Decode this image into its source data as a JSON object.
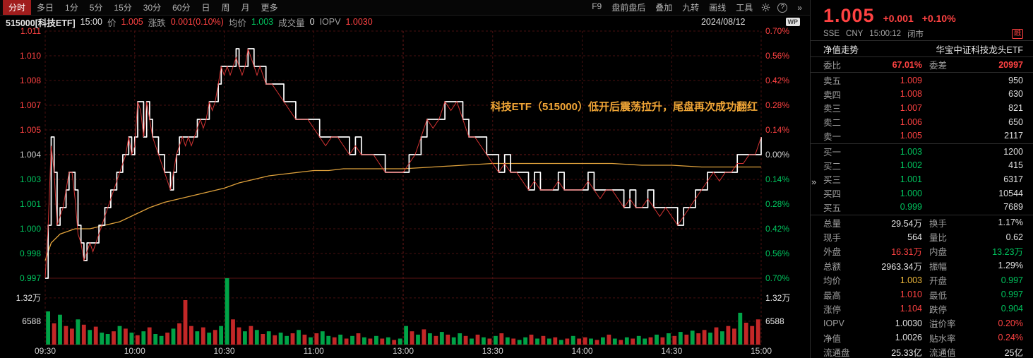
{
  "toolbar": {
    "tabs": [
      {
        "label": "分时",
        "active": true
      },
      {
        "label": "多日",
        "active": false
      },
      {
        "label": "1分",
        "active": false
      },
      {
        "label": "5分",
        "active": false
      },
      {
        "label": "15分",
        "active": false
      },
      {
        "label": "30分",
        "active": false
      },
      {
        "label": "60分",
        "active": false
      },
      {
        "label": "日",
        "active": false
      },
      {
        "label": "周",
        "active": false
      },
      {
        "label": "月",
        "active": false
      },
      {
        "label": "更多",
        "active": false
      }
    ],
    "right_items": [
      "F9",
      "盘前盘后",
      "叠加",
      "九转",
      "画线",
      "工具"
    ],
    "help_icon": "?",
    "more_icon": "»"
  },
  "chart_header": {
    "symbol": "515000[科技ETF]",
    "time": "15:00",
    "price_label": "价",
    "price": "1.005",
    "change_label": "涨跌",
    "change": "0.001(0.10%)",
    "avg_label": "均价",
    "avg": "1.003",
    "vol_label": "成交量",
    "vol": "0",
    "iopv_label": "IOPV",
    "iopv": "1.0030",
    "date": "2024/08/12",
    "logo": "WP"
  },
  "annotation": "科技ETF（515000）低开后震荡拉升，尾盘再次成功翻红",
  "panel_icons": {
    "collapse": "»"
  },
  "chart_data": {
    "type": "line",
    "title": "科技ETF(515000) 分时走势 2024/08/12",
    "prev_close": 1.004,
    "price_min": 0.997,
    "price_max": 1.011,
    "session_minutes": 240,
    "price_axis": [
      "1.011",
      "1.010",
      "1.008",
      "1.007",
      "1.005",
      "1.004",
      "1.003",
      "1.001",
      "1.000",
      "0.998",
      "0.997"
    ],
    "pct_axis": [
      "0.70%",
      "0.56%",
      "0.42%",
      "0.28%",
      "0.14%",
      "0.00%",
      "0.14%",
      "0.28%",
      "0.42%",
      "0.56%",
      "0.70%"
    ],
    "x_axis_labels": [
      "09:30",
      "10:00",
      "10:30",
      "11:00",
      "13:00",
      "13:30",
      "14:00",
      "14:30",
      "15:00"
    ],
    "volume_axis": {
      "upper": "1.32万",
      "lower": "6588"
    },
    "price": [
      [
        0,
        0.997
      ],
      [
        1,
        1.0
      ],
      [
        2,
        1.0045
      ],
      [
        3,
        1.003
      ],
      [
        4,
        1.0
      ],
      [
        5,
        1.0005
      ],
      [
        6,
        1.001
      ],
      [
        7,
        1.002
      ],
      [
        8,
        1.003
      ],
      [
        9,
        1.003
      ],
      [
        10,
        1.0015
      ],
      [
        11,
        0.9995
      ],
      [
        12,
        0.999
      ],
      [
        13,
        0.998
      ],
      [
        14,
        0.9985
      ],
      [
        15,
        0.999
      ],
      [
        16,
        0.9985
      ],
      [
        17,
        0.999
      ],
      [
        18,
        0.9995
      ],
      [
        19,
        1.0
      ],
      [
        20,
        1.0005
      ],
      [
        21,
        1.001
      ],
      [
        22,
        1.0015
      ],
      [
        23,
        1.002
      ],
      [
        24,
        1.0025
      ],
      [
        25,
        1.003
      ],
      [
        26,
        1.0035
      ],
      [
        27,
        1.004
      ],
      [
        28,
        1.005
      ],
      [
        29,
        1.004
      ],
      [
        30,
        1.0045
      ],
      [
        31,
        1.007
      ],
      [
        32,
        1.0065
      ],
      [
        33,
        1.005
      ],
      [
        34,
        1.007
      ],
      [
        35,
        1.006
      ],
      [
        36,
        1.005
      ],
      [
        37,
        1.0045
      ],
      [
        38,
        1.004
      ],
      [
        39,
        1.0035
      ],
      [
        40,
        1.003
      ],
      [
        41,
        1.0025
      ],
      [
        42,
        1.002
      ],
      [
        43,
        1.003
      ],
      [
        44,
        1.004
      ],
      [
        45,
        1.0045
      ],
      [
        46,
        1.005
      ],
      [
        47,
        1.0045
      ],
      [
        48,
        1.005
      ],
      [
        49,
        1.0045
      ],
      [
        50,
        1.005
      ],
      [
        51,
        1.0055
      ],
      [
        52,
        1.006
      ],
      [
        53,
        1.0055
      ],
      [
        54,
        1.006
      ],
      [
        55,
        1.007
      ],
      [
        56,
        1.0065
      ],
      [
        57,
        1.007
      ],
      [
        58,
        1.008
      ],
      [
        59,
        1.009
      ],
      [
        60,
        1.0085
      ],
      [
        61,
        1.009
      ],
      [
        62,
        1.0085
      ],
      [
        63,
        1.009
      ],
      [
        64,
        1.0095
      ],
      [
        65,
        1.009
      ],
      [
        66,
        1.0085
      ],
      [
        67,
        1.009
      ],
      [
        68,
        1.01
      ],
      [
        69,
        1.0095
      ],
      [
        70,
        1.009
      ],
      [
        71,
        1.0085
      ],
      [
        72,
        1.009
      ],
      [
        73,
        1.0085
      ],
      [
        74,
        1.008
      ],
      [
        76,
        1.008
      ],
      [
        78,
        1.0075
      ],
      [
        80,
        1.007
      ],
      [
        82,
        1.0065
      ],
      [
        84,
        1.006
      ],
      [
        86,
        1.006
      ],
      [
        88,
        1.006
      ],
      [
        90,
        1.0055
      ],
      [
        92,
        1.005
      ],
      [
        94,
        1.0045
      ],
      [
        96,
        1.005
      ],
      [
        98,
        1.005
      ],
      [
        100,
        1.0045
      ],
      [
        102,
        1.004
      ],
      [
        104,
        1.0045
      ],
      [
        106,
        1.004
      ],
      [
        108,
        1.004
      ],
      [
        110,
        1.004
      ],
      [
        112,
        1.0035
      ],
      [
        114,
        1.003
      ],
      [
        116,
        1.003
      ],
      [
        118,
        1.003
      ],
      [
        120,
        1.003
      ],
      [
        122,
        1.0035
      ],
      [
        124,
        1.004
      ],
      [
        126,
        1.005
      ],
      [
        128,
        1.006
      ],
      [
        130,
        1.0055
      ],
      [
        132,
        1.006
      ],
      [
        134,
        1.007
      ],
      [
        136,
        1.0065
      ],
      [
        138,
        1.007
      ],
      [
        140,
        1.006
      ],
      [
        142,
        1.005
      ],
      [
        144,
        1.005
      ],
      [
        146,
        1.0045
      ],
      [
        148,
        1.004
      ],
      [
        150,
        1.0035
      ],
      [
        152,
        1.003
      ],
      [
        154,
        1.0035
      ],
      [
        156,
        1.003
      ],
      [
        158,
        1.003
      ],
      [
        160,
        1.0025
      ],
      [
        162,
        1.002
      ],
      [
        164,
        1.0025
      ],
      [
        166,
        1.002
      ],
      [
        168,
        1.002
      ],
      [
        170,
        1.002
      ],
      [
        172,
        1.0025
      ],
      [
        174,
        1.002
      ],
      [
        176,
        1.002
      ],
      [
        178,
        1.002
      ],
      [
        180,
        1.002
      ],
      [
        182,
        1.0025
      ],
      [
        184,
        1.002
      ],
      [
        186,
        1.0015
      ],
      [
        188,
        1.002
      ],
      [
        190,
        1.002
      ],
      [
        192,
        1.0015
      ],
      [
        194,
        1.001
      ],
      [
        196,
        1.0015
      ],
      [
        198,
        1.001
      ],
      [
        200,
        1.001
      ],
      [
        202,
        1.0015
      ],
      [
        204,
        1.001
      ],
      [
        206,
        1.0005
      ],
      [
        208,
        1.001
      ],
      [
        210,
        1.0005
      ],
      [
        212,
        1.0
      ],
      [
        214,
        1.0005
      ],
      [
        216,
        1.001
      ],
      [
        218,
        1.0015
      ],
      [
        220,
        1.002
      ],
      [
        222,
        1.0025
      ],
      [
        224,
        1.003
      ],
      [
        226,
        1.0025
      ],
      [
        228,
        1.003
      ],
      [
        230,
        1.003
      ],
      [
        232,
        1.0035
      ],
      [
        234,
        1.0035
      ],
      [
        236,
        1.004
      ],
      [
        238,
        1.004
      ],
      [
        240,
        1.005
      ]
    ],
    "avg": [
      [
        0,
        0.998
      ],
      [
        2,
        0.999
      ],
      [
        5,
        0.9995
      ],
      [
        10,
        0.9998
      ],
      [
        15,
        0.9998
      ],
      [
        20,
        1.0
      ],
      [
        25,
        1.0002
      ],
      [
        30,
        1.0006
      ],
      [
        35,
        1.001
      ],
      [
        40,
        1.0013
      ],
      [
        45,
        1.0015
      ],
      [
        50,
        1.0017
      ],
      [
        55,
        1.0019
      ],
      [
        60,
        1.0021
      ],
      [
        65,
        1.0024
      ],
      [
        70,
        1.0026
      ],
      [
        75,
        1.0028
      ],
      [
        80,
        1.0029
      ],
      [
        85,
        1.003
      ],
      [
        90,
        1.0031
      ],
      [
        95,
        1.0031
      ],
      [
        100,
        1.0032
      ],
      [
        110,
        1.0032
      ],
      [
        120,
        1.0032
      ],
      [
        130,
        1.0033
      ],
      [
        140,
        1.0034
      ],
      [
        150,
        1.0035
      ],
      [
        160,
        1.0035
      ],
      [
        170,
        1.0035
      ],
      [
        180,
        1.0035
      ],
      [
        190,
        1.0035
      ],
      [
        200,
        1.0034
      ],
      [
        210,
        1.0034
      ],
      [
        220,
        1.0033
      ],
      [
        230,
        1.0033
      ],
      [
        240,
        1.0033
      ]
    ],
    "volume_heights": [
      0.5,
      0.32,
      0.45,
      0.28,
      0.24,
      0.38,
      0.3,
      0.22,
      0.27,
      0.18,
      0.16,
      0.2,
      0.28,
      0.24,
      0.18,
      0.14,
      0.2,
      0.26,
      0.16,
      0.13,
      0.18,
      0.24,
      0.32,
      0.67,
      0.28,
      0.2,
      0.26,
      0.18,
      0.22,
      0.28,
      1.0,
      0.38,
      0.26,
      0.2,
      0.28,
      0.22,
      0.16,
      0.2,
      0.14,
      0.18,
      0.13,
      0.17,
      0.22,
      0.15,
      0.11,
      0.17,
      0.2,
      0.13,
      0.11,
      0.15,
      0.09,
      0.13,
      0.17,
      0.11,
      0.09,
      0.13,
      0.09,
      0.11,
      0.07,
      0.09,
      0.28,
      0.2,
      0.15,
      0.23,
      0.17,
      0.13,
      0.19,
      0.15,
      0.11,
      0.17,
      0.13,
      0.09,
      0.15,
      0.11,
      0.09,
      0.13,
      0.17,
      0.11,
      0.09,
      0.07,
      0.11,
      0.15,
      0.09,
      0.13,
      0.09,
      0.11,
      0.07,
      0.09,
      0.13,
      0.09,
      0.11,
      0.09,
      0.07,
      0.11,
      0.15,
      0.09,
      0.07,
      0.11,
      0.09,
      0.13,
      0.09,
      0.11,
      0.15,
      0.11,
      0.17,
      0.13,
      0.19,
      0.15,
      0.21,
      0.17,
      0.22,
      0.18,
      0.26,
      0.2,
      0.28,
      0.24,
      0.48,
      0.33,
      0.28,
      0.38
    ],
    "volume_colors": "grgrrgrgrggrgrgrgrggrgrrrgrgrggrrgrgrgrggrgrgrggrgrgrgrgrgrggrgrgrgrggrgrgrgrgrggrgrgrgrgrrgrgrgrgrggrgrgrgrgrrgrgrrgrrr"
  },
  "quote": {
    "last": "1.005",
    "change": "+0.001",
    "change_pct": "+0.10%",
    "exchange": "SSE",
    "currency": "CNY",
    "time": "15:00:12",
    "market_status": "闭市",
    "margin_flag": "融",
    "nav_link": "净值走势",
    "full_name": "华宝中证科技龙头ETF",
    "weibi_label": "委比",
    "weibi": "67.01%",
    "weicha_label": "委差",
    "weicha": "20997",
    "asks": [
      {
        "label": "卖五",
        "price": "1.009",
        "vol": "950"
      },
      {
        "label": "卖四",
        "price": "1.008",
        "vol": "630"
      },
      {
        "label": "卖三",
        "price": "1.007",
        "vol": "821"
      },
      {
        "label": "卖二",
        "price": "1.006",
        "vol": "650"
      },
      {
        "label": "卖一",
        "price": "1.005",
        "vol": "2117"
      }
    ],
    "bids": [
      {
        "label": "买一",
        "price": "1.003",
        "vol": "1200"
      },
      {
        "label": "买二",
        "price": "1.002",
        "vol": "415"
      },
      {
        "label": "买三",
        "price": "1.001",
        "vol": "6317"
      },
      {
        "label": "买四",
        "price": "1.000",
        "vol": "10544"
      },
      {
        "label": "买五",
        "price": "0.999",
        "vol": "7689"
      }
    ],
    "stats": [
      [
        {
          "label": "总量",
          "value": "29.54万",
          "color": "white"
        },
        {
          "label": "换手",
          "value": "1.17%",
          "color": "white"
        }
      ],
      [
        {
          "label": "现手",
          "value": "564",
          "color": "white"
        },
        {
          "label": "量比",
          "value": "0.62",
          "color": "white"
        }
      ],
      [
        {
          "label": "外盘",
          "value": "16.31万",
          "color": "up"
        },
        {
          "label": "内盘",
          "value": "13.23万",
          "color": "down"
        }
      ],
      [
        {
          "label": "总额",
          "value": "2963.34万",
          "color": "white"
        },
        {
          "label": "振幅",
          "value": "1.29%",
          "color": "white"
        }
      ],
      [
        {
          "label": "均价",
          "value": "1.003",
          "color": "yellow"
        },
        {
          "label": "开盘",
          "value": "0.997",
          "color": "down"
        }
      ],
      [
        {
          "label": "最高",
          "value": "1.010",
          "color": "up"
        },
        {
          "label": "最低",
          "value": "0.997",
          "color": "down"
        }
      ],
      [
        {
          "label": "涨停",
          "value": "1.104",
          "color": "up"
        },
        {
          "label": "跌停",
          "value": "0.904",
          "color": "down"
        }
      ],
      [
        {
          "label": "IOPV",
          "value": "1.0030",
          "color": "white"
        },
        {
          "label": "溢价率",
          "value": "0.20%",
          "color": "up"
        }
      ],
      [
        {
          "label": "净值",
          "value": "1.0026",
          "color": "white"
        },
        {
          "label": "贴水率",
          "value": "0.24%",
          "color": "up"
        }
      ],
      [
        {
          "label": "流通盘",
          "value": "25.33亿",
          "color": "white"
        },
        {
          "label": "流通值",
          "value": "25亿",
          "color": "white"
        }
      ]
    ]
  }
}
